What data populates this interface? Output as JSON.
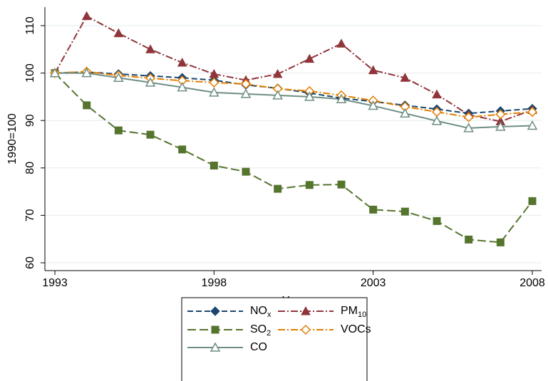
{
  "chart_data": {
    "type": "line",
    "x_label": "Year",
    "y_label": "1990=100",
    "x": [
      1993,
      1994,
      1995,
      1996,
      1997,
      1998,
      1999,
      2000,
      2001,
      2002,
      2003,
      2004,
      2005,
      2006,
      2007,
      2008
    ],
    "xlim": [
      1993,
      2008
    ],
    "xticks": [
      1993,
      1998,
      2003,
      2008
    ],
    "ylim": [
      60,
      110
    ],
    "yticks": [
      60,
      70,
      80,
      90,
      100,
      110
    ],
    "grid": true,
    "series": [
      {
        "name": "NOx",
        "color": "#1a476f",
        "marker": "diamond",
        "dash": "8,4",
        "values": [
          100,
          100.2,
          99.8,
          99.4,
          99,
          98.5,
          97.5,
          96.8,
          95.8,
          94.7,
          94,
          93.2,
          92.4,
          91.5,
          92,
          92.5
        ]
      },
      {
        "name": "PM10",
        "color": "#90353b",
        "marker": "triangle",
        "dash": "10,3,2,3",
        "values": [
          100,
          112,
          108.4,
          105,
          102.2,
          99.8,
          98.5,
          99.8,
          103,
          106.2,
          100.6,
          99,
          95.5,
          91.2,
          89.8,
          92.2
        ]
      },
      {
        "name": "SO2",
        "color": "#55752f",
        "marker": "square",
        "dash": "12,5",
        "values": [
          100,
          93.2,
          87.9,
          87,
          83.9,
          80.5,
          79.2,
          75.6,
          76.4,
          76.5,
          71.2,
          70.8,
          68.8,
          64.9,
          64.3,
          73
        ]
      },
      {
        "name": "VOCs",
        "color": "#e37e00",
        "marker": "hollow-diamond",
        "dash": "10,3,2,3",
        "values": [
          100,
          100.3,
          99.5,
          98.9,
          98.4,
          98,
          97.7,
          96.7,
          96.2,
          95.3,
          94.2,
          92.9,
          91.8,
          90.7,
          91.3,
          91.8
        ]
      },
      {
        "name": "CO",
        "color": "#6e8e84",
        "marker": "hollow-triangle",
        "dash": "none",
        "values": [
          100,
          100,
          99,
          98,
          97,
          95.9,
          95.6,
          95.3,
          95,
          94.5,
          93.1,
          91.5,
          89.9,
          88.4,
          88.7,
          88.9
        ]
      }
    ]
  }
}
